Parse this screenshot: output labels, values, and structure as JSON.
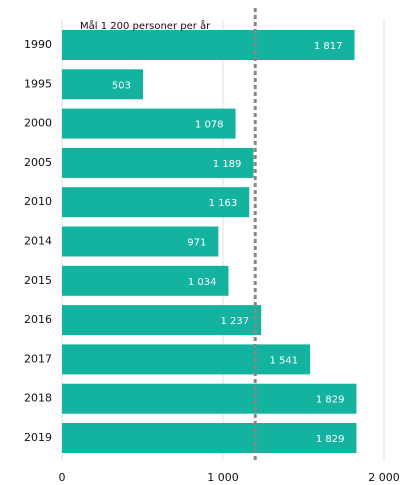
{
  "chart_data": {
    "type": "barh",
    "categories": [
      "1990",
      "1995",
      "2000",
      "2005",
      "2010",
      "2014",
      "2015",
      "2016",
      "2017",
      "2018",
      "2019"
    ],
    "values": [
      1817,
      503,
      1078,
      1189,
      1163,
      971,
      1034,
      1237,
      1541,
      1829,
      1829
    ],
    "value_labels": [
      "1 817",
      "503",
      "1 078",
      "1 189",
      "1 163",
      "971",
      "1 034",
      "1 237",
      "1 541",
      "1 829",
      "1 829"
    ],
    "color": "#14b3a0",
    "xlim": [
      0,
      2000
    ],
    "xticks": [
      0,
      {
        "value": 1000,
        "label": "1 000"
      },
      {
        "value": 2000,
        "label": "2 000"
      }
    ],
    "grid": true,
    "target": {
      "value": 1200,
      "label": "Mål 1 200 personer per år"
    }
  }
}
